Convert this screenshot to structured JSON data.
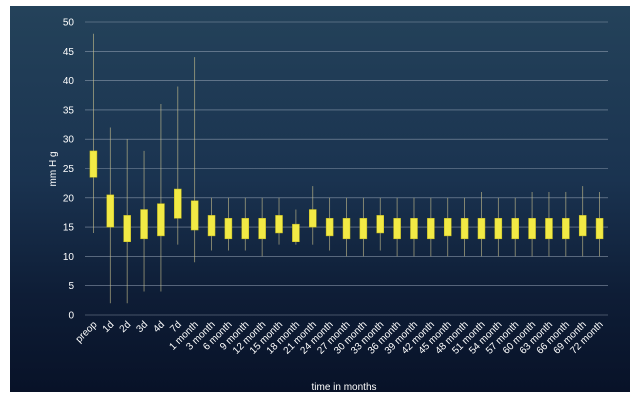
{
  "chart_data": {
    "type": "box",
    "xlabel": "time in months",
    "ylabel": "mm H g",
    "ylim": [
      0,
      50
    ],
    "yticks": [
      0,
      5,
      10,
      15,
      20,
      25,
      30,
      35,
      40,
      45,
      50
    ],
    "grid": true,
    "colors": {
      "box": "#f2ea45",
      "whisker": "#c9c08c",
      "background": "#122744"
    },
    "categories": [
      "preop",
      "1d",
      "2d",
      "3d",
      "4d",
      "7d",
      "1 month",
      "3 month",
      "6 month",
      "9 month",
      "12 month",
      "15 month",
      "18 month",
      "21 month",
      "24 month",
      "27 month",
      "30 month",
      "33 month",
      "36 month",
      "39 month",
      "42 month",
      "45 month",
      "48 month",
      "51 month",
      "54 month",
      "57 month",
      "60 month",
      "63 month",
      "66 month",
      "69 month",
      "72 month"
    ],
    "series": [
      {
        "cat": "preop",
        "low": 14,
        "q1": 23.5,
        "q3": 28,
        "high": 48
      },
      {
        "cat": "1d",
        "low": 2,
        "q1": 15,
        "q3": 20.5,
        "high": 32
      },
      {
        "cat": "2d",
        "low": 2,
        "q1": 12.5,
        "q3": 17,
        "high": 30
      },
      {
        "cat": "3d",
        "low": 4,
        "q1": 13,
        "q3": 18,
        "high": 28
      },
      {
        "cat": "4d",
        "low": 4,
        "q1": 13.5,
        "q3": 19,
        "high": 36
      },
      {
        "cat": "7d",
        "low": 12,
        "q1": 16.5,
        "q3": 21.5,
        "high": 39
      },
      {
        "cat": "1 month",
        "low": 9,
        "q1": 14.5,
        "q3": 19.5,
        "high": 44
      },
      {
        "cat": "3 month",
        "low": 11,
        "q1": 13.5,
        "q3": 17,
        "high": 20
      },
      {
        "cat": "6 month",
        "low": 11,
        "q1": 13,
        "q3": 16.5,
        "high": 20
      },
      {
        "cat": "9 month",
        "low": 11,
        "q1": 13,
        "q3": 16.5,
        "high": 20
      },
      {
        "cat": "12 month",
        "low": 10,
        "q1": 13,
        "q3": 16.5,
        "high": 20
      },
      {
        "cat": "15 month",
        "low": 12,
        "q1": 14,
        "q3": 17,
        "high": 20
      },
      {
        "cat": "18 month",
        "low": 12,
        "q1": 12.5,
        "q3": 15.5,
        "high": 18
      },
      {
        "cat": "21 month",
        "low": 12,
        "q1": 15,
        "q3": 18,
        "high": 22
      },
      {
        "cat": "24 month",
        "low": 11,
        "q1": 13.5,
        "q3": 16.5,
        "high": 20
      },
      {
        "cat": "27 month",
        "low": 10,
        "q1": 13,
        "q3": 16.5,
        "high": 20
      },
      {
        "cat": "30 month",
        "low": 10,
        "q1": 13,
        "q3": 16.5,
        "high": 20
      },
      {
        "cat": "33 month",
        "low": 11,
        "q1": 14,
        "q3": 17,
        "high": 20
      },
      {
        "cat": "36 month",
        "low": 10,
        "q1": 13,
        "q3": 16.5,
        "high": 20
      },
      {
        "cat": "39 month",
        "low": 10,
        "q1": 13,
        "q3": 16.5,
        "high": 20
      },
      {
        "cat": "42 month",
        "low": 10,
        "q1": 13,
        "q3": 16.5,
        "high": 20
      },
      {
        "cat": "45 month",
        "low": 10,
        "q1": 13.5,
        "q3": 16.5,
        "high": 20
      },
      {
        "cat": "48 month",
        "low": 10,
        "q1": 13,
        "q3": 16.5,
        "high": 20
      },
      {
        "cat": "51 month",
        "low": 10,
        "q1": 13,
        "q3": 16.5,
        "high": 21
      },
      {
        "cat": "54 month",
        "low": 10,
        "q1": 13,
        "q3": 16.5,
        "high": 20
      },
      {
        "cat": "57 month",
        "low": 10,
        "q1": 13,
        "q3": 16.5,
        "high": 20
      },
      {
        "cat": "60 month",
        "low": 10,
        "q1": 13,
        "q3": 16.5,
        "high": 21
      },
      {
        "cat": "63 month",
        "low": 10,
        "q1": 13,
        "q3": 16.5,
        "high": 21
      },
      {
        "cat": "66 month",
        "low": 10,
        "q1": 13,
        "q3": 16.5,
        "high": 21
      },
      {
        "cat": "69 month",
        "low": 10,
        "q1": 13.5,
        "q3": 17,
        "high": 22
      },
      {
        "cat": "72 month",
        "low": 10,
        "q1": 13,
        "q3": 16.5,
        "high": 21
      }
    ]
  }
}
